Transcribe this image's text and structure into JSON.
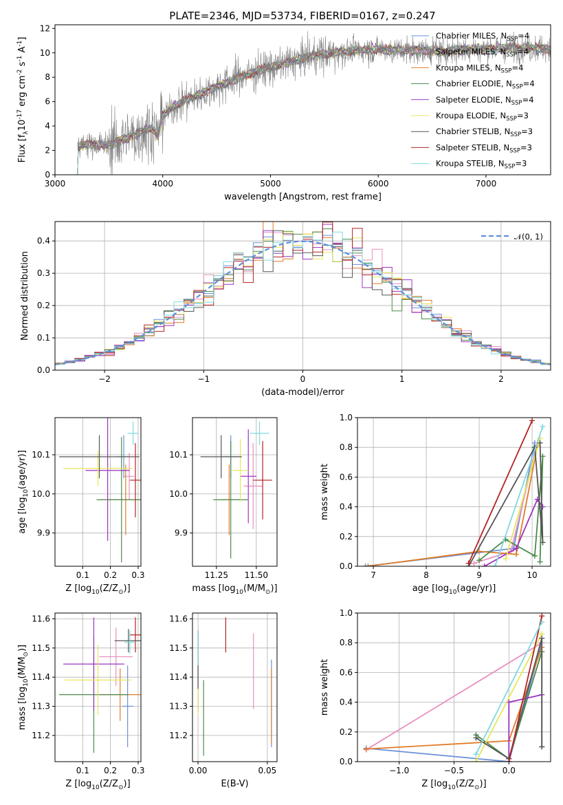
{
  "title": "PLATE=2346, MJD=53734, FIBERID=0167, z=0.247",
  "colors": {
    "chabrier_miles": "#6a8fd8",
    "salpeter_miles": "#e88fbf",
    "kroupa_miles": "#e07b27",
    "chabrier_elodie": "#4a8a4a",
    "salpeter_elodie": "#9b33c2",
    "kroupa_elodie": "#e6e65c",
    "chabrier_stelib": "#555555",
    "salpeter_stelib": "#b22222",
    "kroupa_stelib": "#7fd9dd",
    "data": "#808080",
    "normal": "#5b8fd9"
  },
  "chart_data": [
    {
      "id": "spectrum",
      "type": "line",
      "xlabel": "wavelength [Angstrom, rest frame]",
      "ylabel": "Flux [f$_\\lambda$10$^{-17}$ erg cm$^{-2}$ s$^{-1}$ A$^{-1}$]",
      "xlim": [
        3000,
        7600
      ],
      "ylim": [
        0,
        12.3
      ],
      "xticks": [
        "3000",
        "4000",
        "5000",
        "6000",
        "7000"
      ],
      "yticks": [
        "0",
        "2",
        "4",
        "6",
        "8",
        "10",
        "12"
      ],
      "grid": false,
      "legend_position": "bottom-right",
      "legend": [
        {
          "base": "Chabrier MILES, N",
          "sub": "SSP",
          "tail": "=4",
          "color_key": "chabrier_miles"
        },
        {
          "base": "Salpeter MILES, N",
          "sub": "SSP",
          "tail": "=4",
          "color_key": "salpeter_miles"
        },
        {
          "base": "Kroupa MILES, N",
          "sub": "SSP",
          "tail": "=4",
          "color_key": "kroupa_miles"
        },
        {
          "base": "Chabrier ELODIE, N",
          "sub": "SSP",
          "tail": "=4",
          "color_key": "chabrier_elodie"
        },
        {
          "base": "Salpeter ELODIE, N",
          "sub": "SSP",
          "tail": "=4",
          "color_key": "salpeter_elodie"
        },
        {
          "base": "Kroupa ELODIE, N",
          "sub": "SSP",
          "tail": "=3",
          "color_key": "kroupa_elodie"
        },
        {
          "base": "Chabrier STELIB, N",
          "sub": "SSP",
          "tail": "=3",
          "color_key": "chabrier_stelib"
        },
        {
          "base": "Salpeter STELIB, N",
          "sub": "SSP",
          "tail": "=3",
          "color_key": "salpeter_stelib"
        },
        {
          "base": "Kroupa STELIB, N",
          "sub": "SSP",
          "tail": "=3",
          "color_key": "kroupa_stelib"
        }
      ],
      "continuum": {
        "wavelength": [
          3200,
          3300,
          3400,
          3500,
          3600,
          3700,
          3800,
          3900,
          3950,
          4000,
          4100,
          4200,
          4300,
          4400,
          4600,
          4800,
          5000,
          5200,
          5400,
          5600,
          5800,
          6000,
          6200,
          6400,
          6600,
          6800,
          7000,
          7200,
          7400,
          7600
        ],
        "flux": [
          2.3,
          2.5,
          2.5,
          2.4,
          2.8,
          3.1,
          3.5,
          3.9,
          3.2,
          4.8,
          5.6,
          6.1,
          6.4,
          6.8,
          7.6,
          8.3,
          8.8,
          9.3,
          9.8,
          10.0,
          10.2,
          10.3,
          10.2,
          10.2,
          10.1,
          10.3,
          10.3,
          10.4,
          10.4,
          10.3
        ]
      }
    },
    {
      "id": "residuals",
      "type": "bar",
      "xlabel": "(data-model)/error",
      "ylabel": "Normed distribution",
      "xlim": [
        -2.5,
        2.5
      ],
      "ylim": [
        0,
        0.46
      ],
      "xticks": [
        "−2",
        "−1",
        "0",
        "1",
        "2"
      ],
      "yticks": [
        "0.0",
        "0.1",
        "0.2",
        "0.3",
        "0.4"
      ],
      "grid": true,
      "legend_position": "top-right",
      "legend": [
        {
          "label": "𝒩(0, 1)",
          "color_key": "normal"
        }
      ]
    },
    {
      "id": "age_vs_Z",
      "type": "scatter",
      "xlabel": "Z [log$_{10}$(Z/Z$_\\odot$)]",
      "ylabel": "age  [log$_{10}$(age/yr)]",
      "xlim": [
        0.0,
        0.31
      ],
      "ylim": [
        9.815,
        10.195
      ],
      "xticks": [
        "0.1",
        "0.2",
        "0.3"
      ],
      "yticks": [
        "9.9",
        "10.0",
        "10.1"
      ],
      "grid": true,
      "points": [
        {
          "x": 0.248,
          "y": 10.095,
          "xerr": 0.023,
          "yerr": 0.055,
          "color_key": "chabrier_miles"
        },
        {
          "x": 0.268,
          "y": 10.045,
          "xerr": 0.018,
          "yerr": 0.06,
          "color_key": "salpeter_miles"
        },
        {
          "x": 0.255,
          "y": 9.985,
          "xerr": 0.085,
          "yerr": 0.09,
          "color_key": "kroupa_miles"
        },
        {
          "x": 0.24,
          "y": 9.985,
          "xerr": 0.09,
          "yerr": 0.16,
          "color_key": "chabrier_elodie"
        },
        {
          "x": 0.19,
          "y": 10.06,
          "xerr": 0.08,
          "yerr": 0.18,
          "color_key": "salpeter_elodie"
        },
        {
          "x": 0.155,
          "y": 10.065,
          "xerr": 0.125,
          "yerr": 0.045,
          "color_key": "kroupa_elodie"
        },
        {
          "x": 0.16,
          "y": 10.095,
          "xerr": 0.145,
          "yerr": 0.055,
          "color_key": "chabrier_stelib"
        },
        {
          "x": 0.29,
          "y": 10.035,
          "xerr": 0.02,
          "yerr": 0.095,
          "color_key": "salpeter_stelib"
        },
        {
          "x": 0.282,
          "y": 10.155,
          "xerr": 0.02,
          "yerr": 0.03,
          "color_key": "kroupa_stelib"
        }
      ]
    },
    {
      "id": "age_vs_mass",
      "type": "scatter",
      "xlabel": "mass [log$_{10}$(M/M$_\\odot$)]",
      "ylabel": "",
      "xlim": [
        11.1,
        11.63
      ],
      "ylim": [
        9.815,
        10.195
      ],
      "xticks": [
        "11.25",
        "11.50"
      ],
      "yticks": [
        "9.9",
        "10.0",
        "10.1"
      ],
      "grid": true,
      "points": [
        {
          "x": 11.34,
          "y": 10.095,
          "xerr": 0.05,
          "yerr": 0.055,
          "color_key": "chabrier_miles"
        },
        {
          "x": 11.48,
          "y": 10.02,
          "xerr": 0.06,
          "yerr": 0.11,
          "color_key": "salpeter_miles"
        },
        {
          "x": 11.33,
          "y": 9.985,
          "xerr": 0.07,
          "yerr": 0.09,
          "color_key": "kroupa_miles"
        },
        {
          "x": 11.34,
          "y": 9.985,
          "xerr": 0.11,
          "yerr": 0.15,
          "color_key": "chabrier_elodie"
        },
        {
          "x": 11.45,
          "y": 10.045,
          "xerr": 0.05,
          "yerr": 0.12,
          "color_key": "salpeter_elodie"
        },
        {
          "x": 11.4,
          "y": 10.06,
          "xerr": 0.05,
          "yerr": 0.08,
          "color_key": "kroupa_elodie"
        },
        {
          "x": 11.28,
          "y": 10.095,
          "xerr": 0.13,
          "yerr": 0.055,
          "color_key": "chabrier_stelib"
        },
        {
          "x": 11.54,
          "y": 10.035,
          "xerr": 0.06,
          "yerr": 0.1,
          "color_key": "salpeter_stelib"
        },
        {
          "x": 11.52,
          "y": 10.155,
          "xerr": 0.06,
          "yerr": 0.03,
          "color_key": "kroupa_stelib"
        }
      ]
    },
    {
      "id": "weight_vs_age",
      "type": "line",
      "xlabel": "age  [log$_{10}$(age/yr)]",
      "ylabel": "mass weight",
      "xlim": [
        6.7,
        10.35
      ],
      "ylim": [
        0,
        1.0
      ],
      "xticks": [
        "7",
        "8",
        "9",
        "10"
      ],
      "yticks": [
        "0.0",
        "0.2",
        "0.4",
        "0.6",
        "0.8",
        "1.0"
      ],
      "grid": true,
      "series": [
        {
          "color_key": "chabrier_miles",
          "x": [
            6.85,
            9.65,
            10.05
          ],
          "y": [
            0.0,
            0.12,
            0.83
          ]
        },
        {
          "color_key": "salpeter_miles",
          "x": [
            8.9,
            9.6,
            10.1
          ],
          "y": [
            0.02,
            0.1,
            0.83
          ]
        },
        {
          "color_key": "kroupa_miles",
          "x": [
            6.9,
            9.0,
            9.7,
            10.1
          ],
          "y": [
            0.0,
            0.1,
            0.08,
            0.81
          ]
        },
        {
          "color_key": "chabrier_elodie",
          "x": [
            9.0,
            9.5,
            10.05,
            10.2,
            10.15
          ],
          "y": [
            0.04,
            0.18,
            0.07,
            0.74,
            0.03
          ]
        },
        {
          "color_key": "salpeter_elodie",
          "x": [
            9.1,
            9.7,
            10.1,
            10.2
          ],
          "y": [
            0.0,
            0.12,
            0.45,
            0.4
          ]
        },
        {
          "color_key": "kroupa_elodie",
          "x": [
            9.5,
            10.15
          ],
          "y": [
            0.05,
            0.86
          ]
        },
        {
          "color_key": "chabrier_stelib",
          "x": [
            8.8,
            10.05,
            10.2,
            10.15
          ],
          "y": [
            0.0,
            0.8,
            0.16,
            0.83
          ]
        },
        {
          "color_key": "salpeter_stelib",
          "x": [
            8.8,
            10.0
          ],
          "y": [
            0.02,
            0.98
          ]
        },
        {
          "color_key": "kroupa_stelib",
          "x": [
            9.3,
            10.2
          ],
          "y": [
            0.0,
            0.94
          ]
        }
      ]
    },
    {
      "id": "mass_vs_Z",
      "type": "scatter",
      "xlabel": "Z [log$_{10}$(Z/Z$_\\odot$)]",
      "ylabel": "mass [log$_{10}$(M/M$_\\odot$)]",
      "xlim": [
        0.0,
        0.31
      ],
      "ylim": [
        11.11,
        11.62
      ],
      "xticks": [
        "0.1",
        "0.2",
        "0.3"
      ],
      "yticks": [
        "11.2",
        "11.3",
        "11.4",
        "11.5",
        "11.6"
      ],
      "grid": true,
      "points": [
        {
          "x": 0.262,
          "y": 11.3,
          "xerr": 0.02,
          "yerr": 0.14,
          "color_key": "chabrier_miles"
        },
        {
          "x": 0.22,
          "y": 11.47,
          "xerr": 0.06,
          "yerr": 0.1,
          "color_key": "salpeter_miles"
        },
        {
          "x": 0.235,
          "y": 11.34,
          "xerr": 0.075,
          "yerr": 0.09,
          "color_key": "kroupa_miles"
        },
        {
          "x": 0.14,
          "y": 11.34,
          "xerr": 0.125,
          "yerr": 0.2,
          "color_key": "chabrier_elodie"
        },
        {
          "x": 0.14,
          "y": 11.445,
          "xerr": 0.11,
          "yerr": 0.16,
          "color_key": "salpeter_elodie"
        },
        {
          "x": 0.155,
          "y": 11.39,
          "xerr": 0.12,
          "yerr": 0.12,
          "color_key": "kroupa_elodie"
        },
        {
          "x": 0.265,
          "y": 11.525,
          "xerr": 0.05,
          "yerr": 0.04,
          "color_key": "chabrier_stelib"
        },
        {
          "x": 0.29,
          "y": 11.545,
          "xerr": 0.02,
          "yerr": 0.06,
          "color_key": "salpeter_stelib"
        },
        {
          "x": 0.27,
          "y": 11.52,
          "xerr": 0.02,
          "yerr": 0.04,
          "color_key": "kroupa_stelib"
        }
      ]
    },
    {
      "id": "mass_vs_ebv",
      "type": "scatter",
      "xlabel": "E(B-V)",
      "ylabel": "",
      "xlim": [
        -0.004,
        0.057
      ],
      "ylim": [
        11.11,
        11.62
      ],
      "xticks": [
        "0.00",
        "0.05"
      ],
      "yticks": [
        "11.2",
        "11.3",
        "11.4",
        "11.5",
        "11.6"
      ],
      "grid": true,
      "points": [
        {
          "x": 0.053,
          "y": 11.31,
          "xerr": 0.0,
          "yerr": 0.15,
          "color_key": "chabrier_miles"
        },
        {
          "x": 0.04,
          "y": 11.42,
          "xerr": 0.0,
          "yerr": 0.13,
          "color_key": "salpeter_miles"
        },
        {
          "x": 0.053,
          "y": 11.3,
          "xerr": 0.0,
          "yerr": 0.13,
          "color_key": "kroupa_miles"
        },
        {
          "x": 0.004,
          "y": 11.26,
          "xerr": 0.0,
          "yerr": 0.13,
          "color_key": "chabrier_elodie"
        },
        {
          "x": 0.0,
          "y": 11.42,
          "xerr": 0.0,
          "yerr": 0.14,
          "color_key": "salpeter_elodie"
        },
        {
          "x": 0.0,
          "y": 11.39,
          "xerr": 0.0,
          "yerr": 0.12,
          "color_key": "kroupa_elodie"
        },
        {
          "x": 0.0,
          "y": 11.46,
          "xerr": 0.0,
          "yerr": 0.1,
          "color_key": "chabrier_stelib"
        },
        {
          "x": 0.02,
          "y": 11.545,
          "xerr": 0.0,
          "yerr": 0.06,
          "color_key": "salpeter_stelib"
        },
        {
          "x": 0.0,
          "y": 11.5,
          "xerr": 0.0,
          "yerr": 0.06,
          "color_key": "kroupa_stelib"
        }
      ]
    },
    {
      "id": "weight_vs_Z",
      "type": "line",
      "xlabel": "Z [log$_{10}$(Z/Z$_\\odot$)]",
      "ylabel": "mass weight",
      "xlim": [
        -1.38,
        0.38
      ],
      "ylim": [
        0,
        1.0
      ],
      "xticks": [
        "−1.0",
        "−0.5",
        "0.0"
      ],
      "yticks": [
        "0.0",
        "0.2",
        "0.4",
        "0.6",
        "0.8",
        "1.0"
      ],
      "grid": true,
      "series": [
        {
          "color_key": "chabrier_miles",
          "x": [
            -1.3,
            0.0,
            0.3
          ],
          "y": [
            0.09,
            0.0,
            0.8
          ]
        },
        {
          "color_key": "salpeter_miles",
          "x": [
            -1.3,
            0.3
          ],
          "y": [
            0.08,
            0.8
          ]
        },
        {
          "color_key": "kroupa_miles",
          "x": [
            -1.3,
            0.0,
            0.3
          ],
          "y": [
            0.085,
            0.14,
            0.77
          ]
        },
        {
          "color_key": "chabrier_elodie",
          "x": [
            -0.3,
            0.0,
            0.3,
            0.3
          ],
          "y": [
            0.18,
            0.02,
            0.74,
            0.1
          ]
        },
        {
          "color_key": "salpeter_elodie",
          "x": [
            0.0,
            0.0,
            0.3
          ],
          "y": [
            0.02,
            0.4,
            0.45
          ]
        },
        {
          "color_key": "kroupa_elodie",
          "x": [
            -0.3,
            0.3
          ],
          "y": [
            0.0,
            0.86
          ]
        },
        {
          "color_key": "chabrier_stelib",
          "x": [
            -0.3,
            0.0,
            0.3,
            0.3
          ],
          "y": [
            0.16,
            0.02,
            0.83,
            0.1
          ]
        },
        {
          "color_key": "salpeter_stelib",
          "x": [
            0.0,
            0.3
          ],
          "y": [
            0.0,
            0.98
          ]
        },
        {
          "color_key": "kroupa_stelib",
          "x": [
            -0.3,
            0.3
          ],
          "y": [
            0.05,
            0.94
          ]
        }
      ]
    }
  ]
}
